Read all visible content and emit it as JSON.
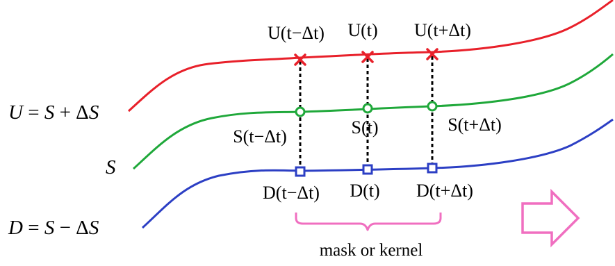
{
  "curves": {
    "upper": {
      "name": "U = S + ΔS",
      "color": "#e8202a"
    },
    "middle": {
      "name": "S",
      "color": "#1fa83a"
    },
    "lower": {
      "name": "D = S − ΔS",
      "color": "#2c3fc4"
    }
  },
  "equations": {
    "u": {
      "lhs": "U",
      "eq": " = ",
      "var": "S",
      "op": " + ",
      "delta": "Δ",
      "var2": "S"
    },
    "s": {
      "var": "S"
    },
    "d": {
      "lhs": "D",
      "eq": " = ",
      "var": "S",
      "op": " − ",
      "delta": "Δ",
      "var2": "S"
    }
  },
  "points": {
    "upper": {
      "marker": "x-mark",
      "labels": [
        "U(t−Δt)",
        "U(t)",
        "U(t+Δt)"
      ]
    },
    "middle": {
      "marker": "circle",
      "labels": [
        "S(t−Δt)",
        "S(t)",
        "S(t+Δt)"
      ]
    },
    "lower": {
      "marker": "square",
      "labels": [
        "D(t−Δt)",
        "D(t)",
        "D(t+Δt)"
      ]
    }
  },
  "bracket": {
    "label": "mask or kernel",
    "color": "#f06fc0"
  },
  "arrow": {
    "direction": "right",
    "icon": "arrow-right-icon",
    "color": "#f06fc0"
  }
}
